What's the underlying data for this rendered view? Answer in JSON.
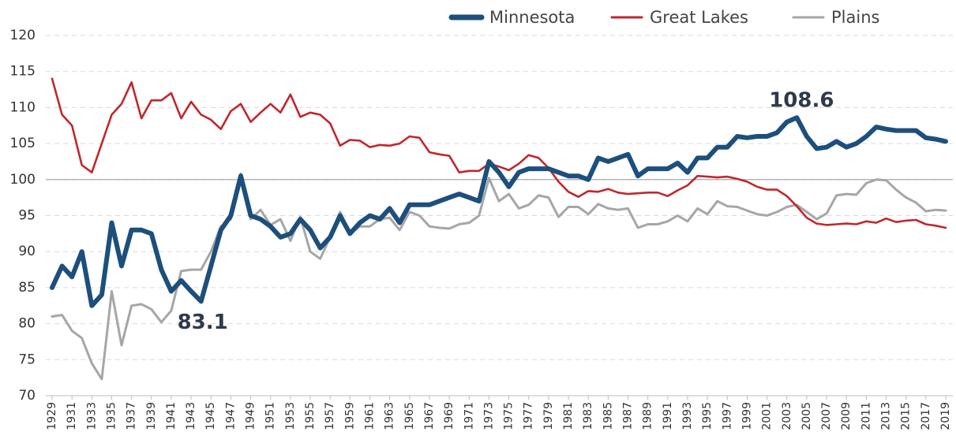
{
  "chart_data": {
    "type": "line",
    "x": [
      1929,
      1930,
      1931,
      1932,
      1933,
      1934,
      1935,
      1936,
      1937,
      1938,
      1939,
      1940,
      1941,
      1942,
      1943,
      1944,
      1945,
      1946,
      1947,
      1948,
      1949,
      1950,
      1951,
      1952,
      1953,
      1954,
      1955,
      1956,
      1957,
      1958,
      1959,
      1960,
      1961,
      1962,
      1963,
      1964,
      1965,
      1966,
      1967,
      1968,
      1969,
      1970,
      1971,
      1972,
      1973,
      1974,
      1975,
      1976,
      1977,
      1978,
      1979,
      1980,
      1981,
      1982,
      1983,
      1984,
      1985,
      1986,
      1987,
      1988,
      1989,
      1990,
      1991,
      1992,
      1993,
      1994,
      1995,
      1996,
      1997,
      1998,
      1999,
      2000,
      2001,
      2002,
      2003,
      2004,
      2005,
      2006,
      2007,
      2008,
      2009,
      2010,
      2011,
      2012,
      2013,
      2014,
      2015,
      2016,
      2017,
      2018,
      2019
    ],
    "xlim": [
      1929,
      2019
    ],
    "xticks": [
      1929,
      1931,
      1933,
      1935,
      1937,
      1939,
      1941,
      1943,
      1945,
      1947,
      1949,
      1951,
      1953,
      1955,
      1957,
      1959,
      1961,
      1963,
      1965,
      1967,
      1969,
      1971,
      1973,
      1975,
      1977,
      1979,
      1981,
      1983,
      1985,
      1987,
      1989,
      1991,
      1993,
      1995,
      1997,
      1999,
      2001,
      2003,
      2005,
      2007,
      2009,
      2011,
      2013,
      2015,
      2017,
      2019
    ],
    "ylim": [
      70,
      120
    ],
    "yticks": [
      70,
      75,
      80,
      85,
      90,
      95,
      100,
      105,
      110,
      115,
      120
    ],
    "grid": true,
    "baseline": 100,
    "legend": "top",
    "series": [
      {
        "name": "Minnesota",
        "color": "#1d4f7c",
        "values": [
          85,
          88,
          86.5,
          90,
          82.5,
          84,
          94,
          88,
          93,
          93,
          92.5,
          87.5,
          84.5,
          86,
          84.5,
          83.1,
          88,
          93,
          95,
          100.5,
          95,
          94.5,
          93.5,
          92,
          92.5,
          94.5,
          93,
          90.5,
          92,
          95,
          92.5,
          94,
          95,
          94.5,
          96,
          94,
          96.5,
          96.5,
          96.5,
          97,
          97.5,
          98,
          97.5,
          97,
          102.5,
          101,
          99,
          101,
          101.5,
          101.5,
          101.5,
          101,
          100.5,
          100.5,
          100,
          103,
          102.5,
          103,
          103.5,
          100.5,
          101.5,
          101.5,
          101.5,
          102.3,
          101,
          103,
          103,
          104.5,
          104.5,
          106,
          105.8,
          106,
          106,
          106.5,
          108,
          108.6,
          106,
          104.3,
          104.5,
          105.3,
          104.5,
          105,
          106,
          107.3,
          107,
          106.8,
          106.8,
          106.8,
          105.8,
          105.6,
          105.3
        ]
      },
      {
        "name": "Great Lakes",
        "color": "#c1272d",
        "values": [
          114,
          109,
          107.5,
          102,
          101,
          105,
          109,
          110.5,
          113.5,
          108.5,
          111,
          111,
          112,
          108.5,
          110.8,
          109,
          108.3,
          107,
          109.5,
          110.5,
          108,
          109.3,
          110.5,
          109.3,
          111.8,
          108.7,
          109.3,
          109,
          107.8,
          104.7,
          105.5,
          105.4,
          104.5,
          104.8,
          104.7,
          105,
          106,
          105.8,
          103.8,
          103.5,
          103.3,
          101,
          101.2,
          101.2,
          102.2,
          101.8,
          101.3,
          102.2,
          103.4,
          103,
          101.6,
          99.7,
          98.3,
          97.6,
          98.4,
          98.3,
          98.7,
          98.2,
          98,
          98.1,
          98.2,
          98.2,
          97.7,
          98.5,
          99.2,
          100.5,
          100.4,
          100.3,
          100.4,
          100.1,
          99.7,
          99,
          98.6,
          98.6,
          97.7,
          96.3,
          94.7,
          93.9,
          93.7,
          93.8,
          93.9,
          93.8,
          94.2,
          94,
          94.6,
          94.1,
          94.3,
          94.4,
          93.8,
          93.6,
          93.3
        ]
      },
      {
        "name": "Plains",
        "color": "#a6a6a6",
        "values": [
          81,
          81.2,
          79,
          78,
          74.5,
          72.3,
          84.5,
          77,
          82.5,
          82.7,
          82,
          80.2,
          81.8,
          87.3,
          87.5,
          87.5,
          90,
          93.5,
          94.5,
          100.8,
          94.5,
          95.8,
          93.7,
          94.5,
          91.5,
          94.8,
          90,
          89,
          92,
          95.5,
          92.5,
          93.5,
          93.5,
          94.5,
          94.7,
          93,
          95.5,
          95,
          93.5,
          93.3,
          93.2,
          93.8,
          94,
          95,
          100.2,
          97,
          98,
          96,
          96.5,
          97.8,
          97.5,
          94.8,
          96.2,
          96.2,
          95.2,
          96.6,
          96,
          95.8,
          96,
          93.3,
          93.8,
          93.8,
          94.2,
          95,
          94.2,
          96,
          95.2,
          97,
          96.3,
          96.2,
          95.7,
          95.2,
          95,
          95.5,
          96.2,
          96.5,
          95.5,
          94.5,
          95.3,
          97.8,
          98,
          97.9,
          99.5,
          100,
          99.9,
          98.6,
          97.5,
          96.8,
          95.6,
          95.8,
          95.7
        ]
      }
    ],
    "annotations": [
      {
        "x": 1944,
        "y": 83.1
      },
      {
        "x": 2004,
        "y": 108.6
      }
    ]
  }
}
